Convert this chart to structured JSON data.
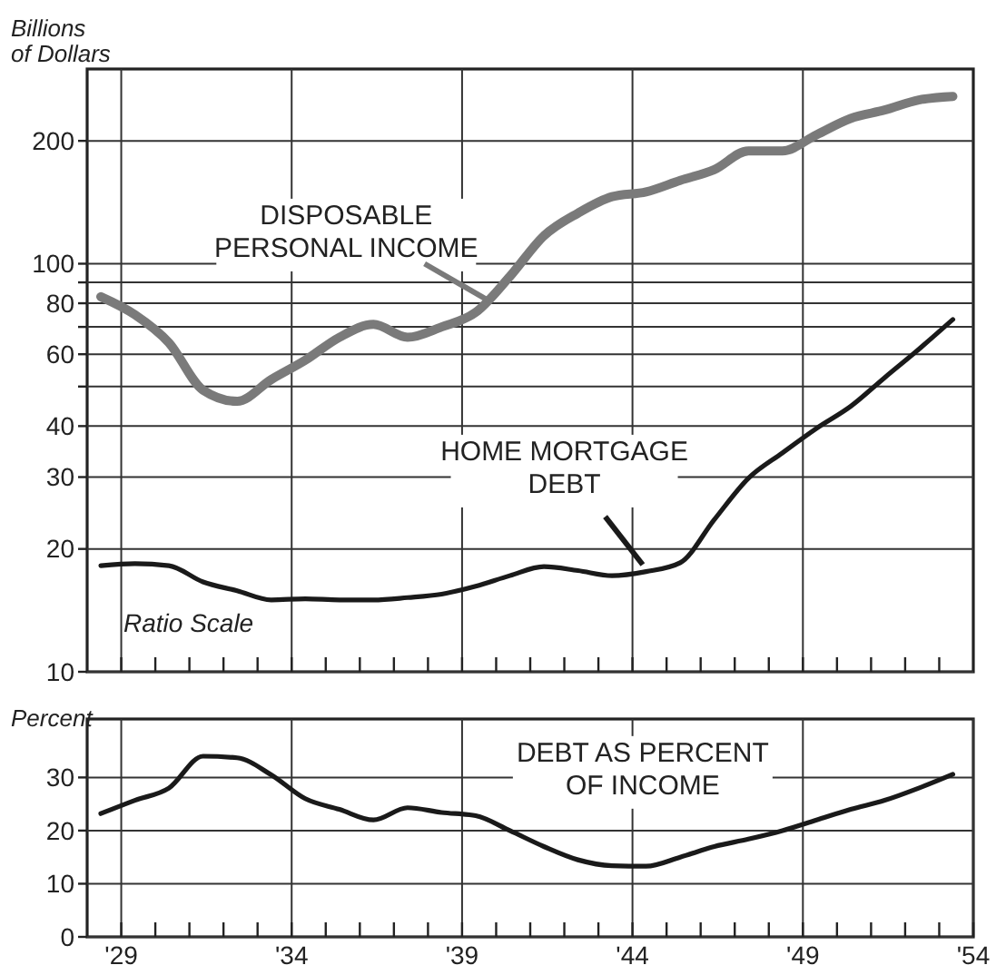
{
  "chart_data": [
    {
      "type": "line",
      "ylabel": "Billions of Dollars",
      "log": "y",
      "grid": true,
      "tick_labels": "y",
      "ylim": [
        10,
        300
      ],
      "yticks": [
        10,
        20,
        30,
        40,
        {
          "value": 50,
          "label": null
        },
        60,
        {
          "value": 70,
          "label": null
        },
        80,
        {
          "value": 90,
          "label": null
        },
        100,
        200
      ],
      "xlim": [
        1928,
        1954
      ],
      "xticks": [
        {
          "value": 1929,
          "label": null
        },
        {
          "value": 1930,
          "label": null
        },
        {
          "value": 1931,
          "label": null
        },
        {
          "value": 1932,
          "label": null
        },
        {
          "value": 1933,
          "label": null
        },
        {
          "value": 1934,
          "label": null
        },
        {
          "value": 1935,
          "label": null
        },
        {
          "value": 1936,
          "label": null
        },
        {
          "value": 1937,
          "label": null
        },
        {
          "value": 1938,
          "label": null
        },
        {
          "value": 1939,
          "label": null
        },
        {
          "value": 1940,
          "label": null
        },
        {
          "value": 1941,
          "label": null
        },
        {
          "value": 1942,
          "label": null
        },
        {
          "value": 1943,
          "label": null
        },
        {
          "value": 1944,
          "label": null
        },
        {
          "value": 1945,
          "label": null
        },
        {
          "value": 1946,
          "label": null
        },
        {
          "value": 1947,
          "label": null
        },
        {
          "value": 1948,
          "label": null
        },
        {
          "value": 1949,
          "label": null
        },
        {
          "value": 1950,
          "label": null
        },
        {
          "value": 1951,
          "label": null
        },
        {
          "value": 1952,
          "label": null
        },
        {
          "value": 1953,
          "label": null
        }
      ],
      "x": [
        1928.4,
        1929.4,
        1930.4,
        1931.4,
        1932.4,
        1933.4,
        1934.4,
        1935.4,
        1936.4,
        1937.4,
        1938.4,
        1939.4,
        1940.4,
        1941.4,
        1942.4,
        1943.4,
        1944.4,
        1945.4,
        1946.4,
        1947.4,
        1948.4,
        1949.4,
        1950.4,
        1951.4,
        1952.4,
        1953.4
      ],
      "annotations": [
        "Ratio Scale"
      ],
      "series": [
        {
          "name": "DISPOSABLE PERSONAL INCOME",
          "color": "#7a7a7a",
          "values": [
            83,
            75,
            64,
            49,
            46,
            52,
            58,
            66,
            71,
            66,
            70,
            76,
            93,
            117,
            133,
            146,
            150,
            160,
            170,
            189,
            189,
            207,
            227,
            238,
            252,
            257
          ]
        },
        {
          "name": "HOME MORTGAGE DEBT",
          "color": "#1a1a1a",
          "values": [
            18.2,
            18.4,
            18.2,
            16.6,
            15.8,
            15.0,
            15.1,
            15.0,
            15.0,
            15.2,
            15.5,
            16.2,
            17.2,
            18.1,
            17.7,
            17.2,
            17.6,
            18.5,
            23.6,
            29.8,
            34.4,
            39.5,
            44.7,
            52.6,
            61.7,
            73
          ]
        }
      ]
    },
    {
      "type": "line",
      "ylabel": "Percent",
      "grid": true,
      "ylim": [
        0,
        41
      ],
      "yticks": [
        0,
        10,
        20,
        30
      ],
      "xlim": [
        1928,
        1954
      ],
      "xticks": [
        {
          "value": 1929,
          "label": "'29"
        },
        {
          "value": 1930,
          "label": null
        },
        {
          "value": 1931,
          "label": null
        },
        {
          "value": 1932,
          "label": null
        },
        {
          "value": 1933,
          "label": null
        },
        {
          "value": 1934,
          "label": "'34"
        },
        {
          "value": 1935,
          "label": null
        },
        {
          "value": 1936,
          "label": null
        },
        {
          "value": 1937,
          "label": null
        },
        {
          "value": 1938,
          "label": null
        },
        {
          "value": 1939,
          "label": "'39"
        },
        {
          "value": 1940,
          "label": null
        },
        {
          "value": 1941,
          "label": null
        },
        {
          "value": 1942,
          "label": null
        },
        {
          "value": 1943,
          "label": null
        },
        {
          "value": 1944,
          "label": "'44"
        },
        {
          "value": 1945,
          "label": null
        },
        {
          "value": 1946,
          "label": null
        },
        {
          "value": 1947,
          "label": null
        },
        {
          "value": 1948,
          "label": null
        },
        {
          "value": 1949,
          "label": "'49"
        },
        {
          "value": 1950,
          "label": null
        },
        {
          "value": 1951,
          "label": null
        },
        {
          "value": 1952,
          "label": null
        },
        {
          "value": 1953,
          "label": null
        },
        {
          "value": 1954,
          "label": "'54"
        }
      ],
      "x": [
        1928.4,
        1929.4,
        1930.4,
        1931.4,
        1932.4,
        1933.4,
        1934.4,
        1935.4,
        1936.4,
        1937.4,
        1938.4,
        1939.4,
        1940.4,
        1941.4,
        1942.4,
        1943.4,
        1944.4,
        1945.4,
        1946.4,
        1947.4,
        1948.4,
        1949.4,
        1950.4,
        1951.4,
        1952.4,
        1953.4
      ],
      "series": [
        {
          "name": "DEBT AS PERCENT OF INCOME",
          "color": "#1a1a1a",
          "values": [
            23.2,
            25.7,
            28,
            34,
            33.7,
            30.5,
            26,
            24,
            22,
            24.3,
            23.4,
            22.8,
            20,
            17,
            14.5,
            13.4,
            13.3,
            15,
            17,
            18.4,
            20,
            22,
            24,
            25.7,
            28,
            30.6
          ]
        }
      ]
    }
  ]
}
